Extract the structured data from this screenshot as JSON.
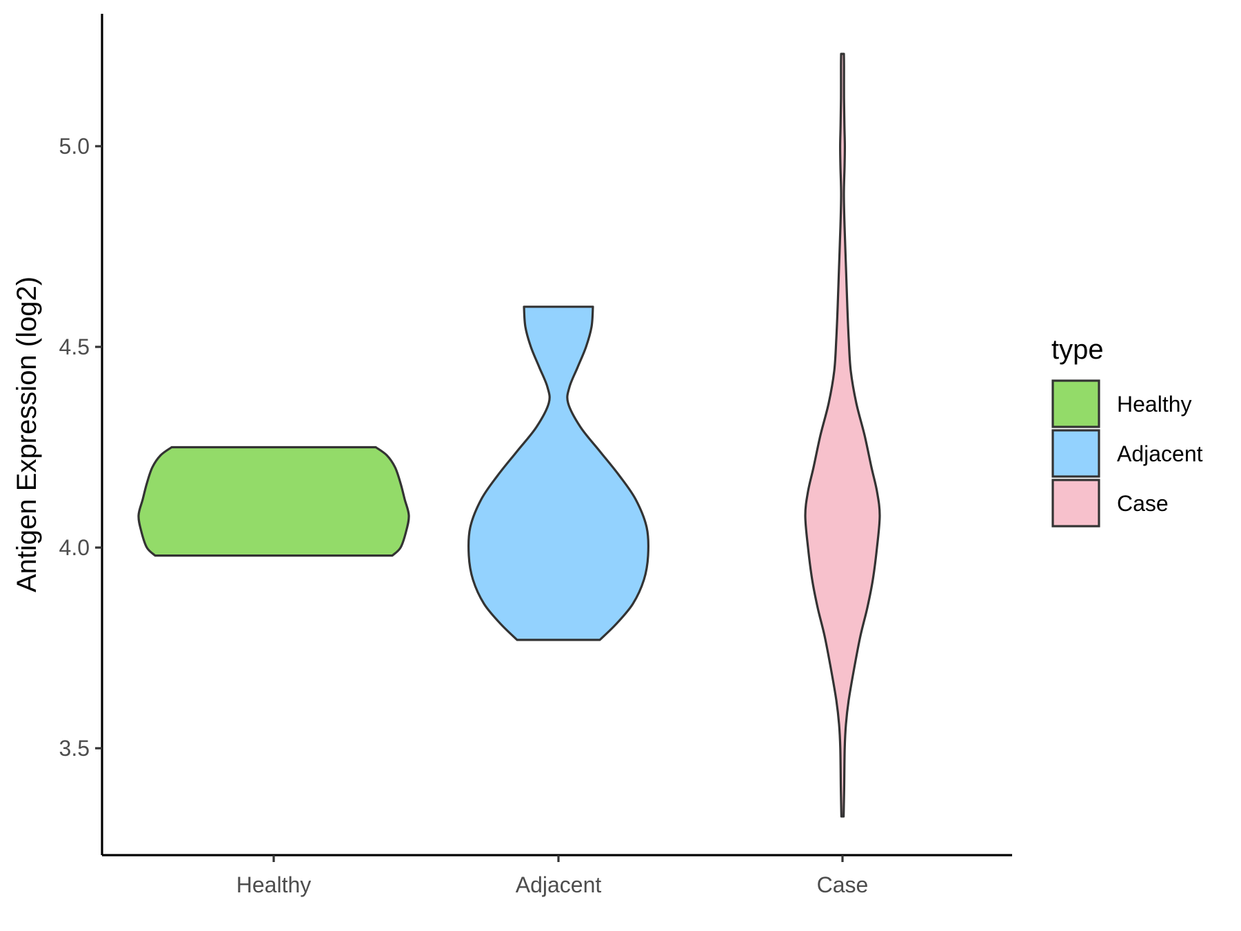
{
  "chart_data": {
    "type": "violin",
    "title": "",
    "xlabel": "",
    "ylabel": "Antigen Expression (log2)",
    "ylim": [
      3.23,
      5.28
    ],
    "yticks": [
      3.5,
      4.0,
      4.5,
      5.0
    ],
    "ytick_labels": [
      "3.5",
      "4.0",
      "4.5",
      "5.0"
    ],
    "categories": [
      "Healthy",
      "Adjacent",
      "Case"
    ],
    "grid": false,
    "legend": {
      "title": "type",
      "placement": "right",
      "entries": [
        "Healthy",
        "Adjacent",
        "Case"
      ]
    },
    "series": [
      {
        "name": "Healthy",
        "color": "#93DB69",
        "min": 3.98,
        "max": 4.25,
        "density": [
          [
            3.98,
            0.86
          ],
          [
            4.0,
            0.92
          ],
          [
            4.04,
            0.96
          ],
          [
            4.08,
            0.98
          ],
          [
            4.12,
            0.95
          ],
          [
            4.16,
            0.92
          ],
          [
            4.2,
            0.88
          ],
          [
            4.23,
            0.82
          ],
          [
            4.25,
            0.74
          ]
        ]
      },
      {
        "name": "Adjacent",
        "color": "#93D2FE",
        "min": 3.77,
        "max": 4.6,
        "density": [
          [
            3.77,
            0.3
          ],
          [
            3.81,
            0.42
          ],
          [
            3.86,
            0.54
          ],
          [
            3.92,
            0.62
          ],
          [
            3.98,
            0.65
          ],
          [
            4.05,
            0.64
          ],
          [
            4.12,
            0.56
          ],
          [
            4.18,
            0.44
          ],
          [
            4.24,
            0.3
          ],
          [
            4.3,
            0.16
          ],
          [
            4.36,
            0.07
          ],
          [
            4.4,
            0.08
          ],
          [
            4.45,
            0.14
          ],
          [
            4.5,
            0.2
          ],
          [
            4.55,
            0.24
          ],
          [
            4.6,
            0.25
          ]
        ]
      },
      {
        "name": "Case",
        "color": "#F7C1CC",
        "min": 3.33,
        "max": 5.23,
        "density": [
          [
            3.33,
            0.008
          ],
          [
            3.4,
            0.012
          ],
          [
            3.5,
            0.016
          ],
          [
            3.56,
            0.025
          ],
          [
            3.62,
            0.045
          ],
          [
            3.7,
            0.085
          ],
          [
            3.78,
            0.13
          ],
          [
            3.85,
            0.18
          ],
          [
            3.92,
            0.22
          ],
          [
            4.0,
            0.25
          ],
          [
            4.08,
            0.27
          ],
          [
            4.14,
            0.25
          ],
          [
            4.2,
            0.21
          ],
          [
            4.28,
            0.16
          ],
          [
            4.36,
            0.1
          ],
          [
            4.44,
            0.06
          ],
          [
            4.52,
            0.045
          ],
          [
            4.6,
            0.035
          ],
          [
            4.7,
            0.025
          ],
          [
            4.8,
            0.015
          ],
          [
            4.88,
            0.01
          ],
          [
            4.95,
            0.015
          ],
          [
            5.0,
            0.017
          ],
          [
            5.05,
            0.014
          ],
          [
            5.12,
            0.011
          ],
          [
            5.2,
            0.011
          ],
          [
            5.23,
            0.01
          ]
        ]
      }
    ]
  }
}
